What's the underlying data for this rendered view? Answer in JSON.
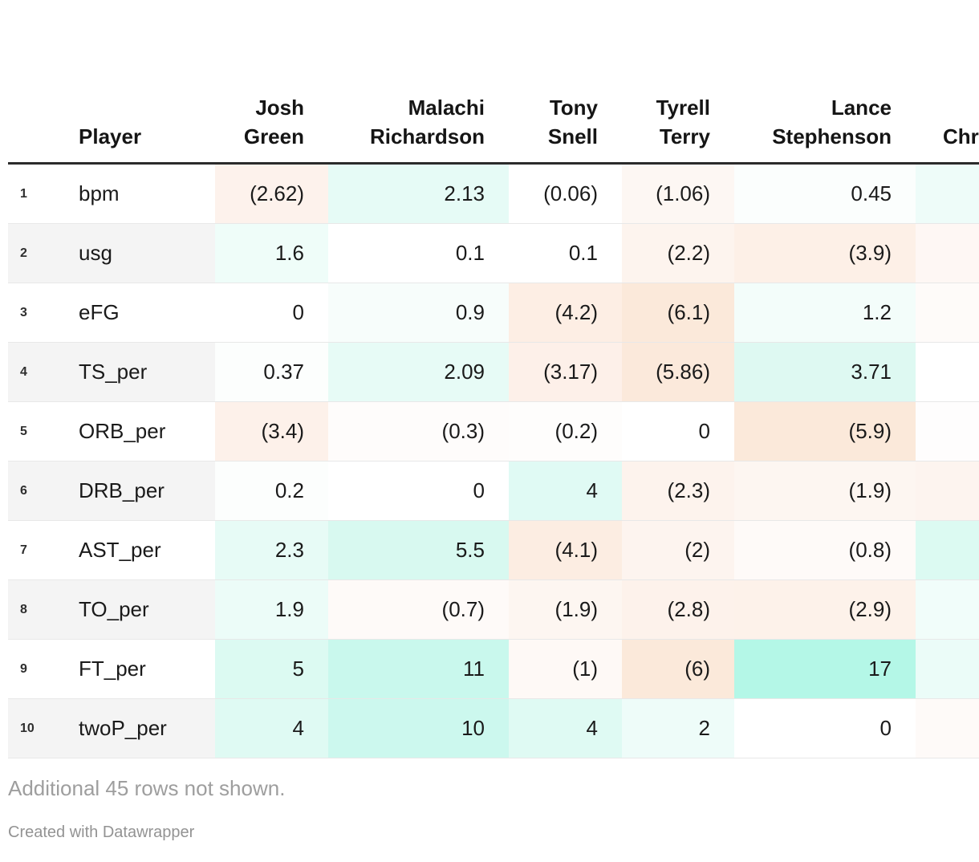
{
  "header": {
    "num_label": "",
    "player_label": "Player",
    "players": [
      "Josh Green",
      "Malachi Richardson",
      "Tony Snell",
      "Tyrell Terry",
      "Lance Stephenson",
      "Chr"
    ]
  },
  "rows": [
    {
      "num": "1",
      "stat": "bpm",
      "cells": [
        {
          "text": "(2.62)",
          "bg": "#fdf2ec"
        },
        {
          "text": "2.13",
          "bg": "#e6fbf6"
        },
        {
          "text": "(0.06)",
          "bg": "#ffffff"
        },
        {
          "text": "(1.06)",
          "bg": "#fdf7f3"
        },
        {
          "text": "0.45",
          "bg": "#fbfefd"
        },
        {
          "text": "",
          "bg": "#eefcf9"
        }
      ]
    },
    {
      "num": "2",
      "stat": "usg",
      "cells": [
        {
          "text": "1.6",
          "bg": "#effdf9"
        },
        {
          "text": "0.1",
          "bg": "#ffffff"
        },
        {
          "text": "0.1",
          "bg": "#ffffff"
        },
        {
          "text": "(2.2)",
          "bg": "#fdf4ee"
        },
        {
          "text": "(3.9)",
          "bg": "#fdf0e7"
        },
        {
          "text": "",
          "bg": "#fef7f4"
        }
      ]
    },
    {
      "num": "3",
      "stat": "eFG",
      "cells": [
        {
          "text": "0",
          "bg": "#ffffff"
        },
        {
          "text": "0.9",
          "bg": "#f7fdfb"
        },
        {
          "text": "(4.2)",
          "bg": "#fdeee4"
        },
        {
          "text": "(6.1)",
          "bg": "#fbe9da"
        },
        {
          "text": "1.2",
          "bg": "#f3fdfa"
        },
        {
          "text": "",
          "bg": "#fefbf9"
        }
      ]
    },
    {
      "num": "4",
      "stat": "TS_per",
      "cells": [
        {
          "text": "0.37",
          "bg": "#fcfefd"
        },
        {
          "text": "2.09",
          "bg": "#e7fbf6"
        },
        {
          "text": "(3.17)",
          "bg": "#fdf0e9"
        },
        {
          "text": "(5.86)",
          "bg": "#fbe9db"
        },
        {
          "text": "3.71",
          "bg": "#def9f2"
        },
        {
          "text": "",
          "bg": "#ffffff"
        }
      ]
    },
    {
      "num": "5",
      "stat": "ORB_per",
      "cells": [
        {
          "text": "(3.4)",
          "bg": "#fdf1ea"
        },
        {
          "text": "(0.3)",
          "bg": "#fefcfb"
        },
        {
          "text": "(0.2)",
          "bg": "#fefdfc"
        },
        {
          "text": "0",
          "bg": "#ffffff"
        },
        {
          "text": "(5.9)",
          "bg": "#fbe9da"
        },
        {
          "text": "",
          "bg": "#fefdfd"
        }
      ]
    },
    {
      "num": "6",
      "stat": "DRB_per",
      "cells": [
        {
          "text": "0.2",
          "bg": "#fcfefd"
        },
        {
          "text": "0",
          "bg": "#ffffff"
        },
        {
          "text": "4",
          "bg": "#e0faf4"
        },
        {
          "text": "(2.3)",
          "bg": "#fdf3ed"
        },
        {
          "text": "(1.9)",
          "bg": "#fdf6f1"
        },
        {
          "text": "",
          "bg": "#fdf4ef"
        }
      ]
    },
    {
      "num": "7",
      "stat": "AST_per",
      "cells": [
        {
          "text": "2.3",
          "bg": "#e7fbf6"
        },
        {
          "text": "5.5",
          "bg": "#d8f9f0"
        },
        {
          "text": "(4.1)",
          "bg": "#fcede2"
        },
        {
          "text": "(2)",
          "bg": "#fdf4ef"
        },
        {
          "text": "(0.8)",
          "bg": "#fefaf8"
        },
        {
          "text": "",
          "bg": "#dcfaf2"
        }
      ]
    },
    {
      "num": "8",
      "stat": "TO_per",
      "cells": [
        {
          "text": "1.9",
          "bg": "#ecfcf8"
        },
        {
          "text": "(0.7)",
          "bg": "#fefaf8"
        },
        {
          "text": "(1.9)",
          "bg": "#fdf6f1"
        },
        {
          "text": "(2.8)",
          "bg": "#fdf2eb"
        },
        {
          "text": "(2.9)",
          "bg": "#fdf2ea"
        },
        {
          "text": "",
          "bg": "#f1fdfa"
        }
      ]
    },
    {
      "num": "9",
      "stat": "FT_per",
      "cells": [
        {
          "text": "5",
          "bg": "#dcfaf2"
        },
        {
          "text": "11",
          "bg": "#c9f8ed"
        },
        {
          "text": "(1)",
          "bg": "#fef9f6"
        },
        {
          "text": "(6)",
          "bg": "#fbe9da"
        },
        {
          "text": "17",
          "bg": "#b4f7e7"
        },
        {
          "text": "",
          "bg": "#ebfcf8"
        }
      ]
    },
    {
      "num": "10",
      "stat": "twoP_per",
      "cells": [
        {
          "text": "4",
          "bg": "#dffaf3"
        },
        {
          "text": "10",
          "bg": "#ccf8ee"
        },
        {
          "text": "4",
          "bg": "#dffaf3"
        },
        {
          "text": "2",
          "bg": "#eefcf9"
        },
        {
          "text": "0",
          "bg": "#ffffff"
        },
        {
          "text": "",
          "bg": "#fefaf8"
        }
      ]
    }
  ],
  "note": "Additional 45 rows not shown.",
  "attribution": "Created with Datawrapper",
  "colors": {
    "positive_max": "#b4f7e7",
    "negative_max": "#fbe9da",
    "zebra": "#f4f4f4",
    "header_border": "#2b2b2b",
    "row_border": "#e8e8e8",
    "note_text": "#9e9e9e"
  },
  "chart_data": {
    "type": "table",
    "title": "",
    "columns": [
      "Player",
      "Josh Green",
      "Malachi Richardson",
      "Tony Snell",
      "Tyrell Terry",
      "Lance Stephenson",
      "Chr"
    ],
    "row_numbers": [
      1,
      2,
      3,
      4,
      5,
      6,
      7,
      8,
      9,
      10
    ],
    "rows": [
      {
        "player": "bpm",
        "values": [
          -2.62,
          2.13,
          -0.06,
          -1.06,
          0.45,
          null
        ]
      },
      {
        "player": "usg",
        "values": [
          1.6,
          0.1,
          0.1,
          -2.2,
          -3.9,
          null
        ]
      },
      {
        "player": "eFG",
        "values": [
          0,
          0.9,
          -4.2,
          -6.1,
          1.2,
          null
        ]
      },
      {
        "player": "TS_per",
        "values": [
          0.37,
          2.09,
          -3.17,
          -5.86,
          3.71,
          null
        ]
      },
      {
        "player": "ORB_per",
        "values": [
          -3.4,
          -0.3,
          -0.2,
          0,
          -5.9,
          null
        ]
      },
      {
        "player": "DRB_per",
        "values": [
          0.2,
          0,
          4,
          -2.3,
          -1.9,
          null
        ]
      },
      {
        "player": "AST_per",
        "values": [
          2.3,
          5.5,
          -4.1,
          -2,
          -0.8,
          null
        ]
      },
      {
        "player": "TO_per",
        "values": [
          1.9,
          -0.7,
          -1.9,
          -2.8,
          -2.9,
          null
        ]
      },
      {
        "player": "FT_per",
        "values": [
          5,
          11,
          -1,
          -6,
          17,
          null
        ]
      },
      {
        "player": "twoP_per",
        "values": [
          4,
          10,
          4,
          2,
          0,
          null
        ]
      }
    ],
    "notes": [
      "Additional 45 rows not shown.",
      "Created with Datawrapper"
    ],
    "style": "heatmap: negative values in parentheses shaded orange, positive values shaded teal"
  }
}
